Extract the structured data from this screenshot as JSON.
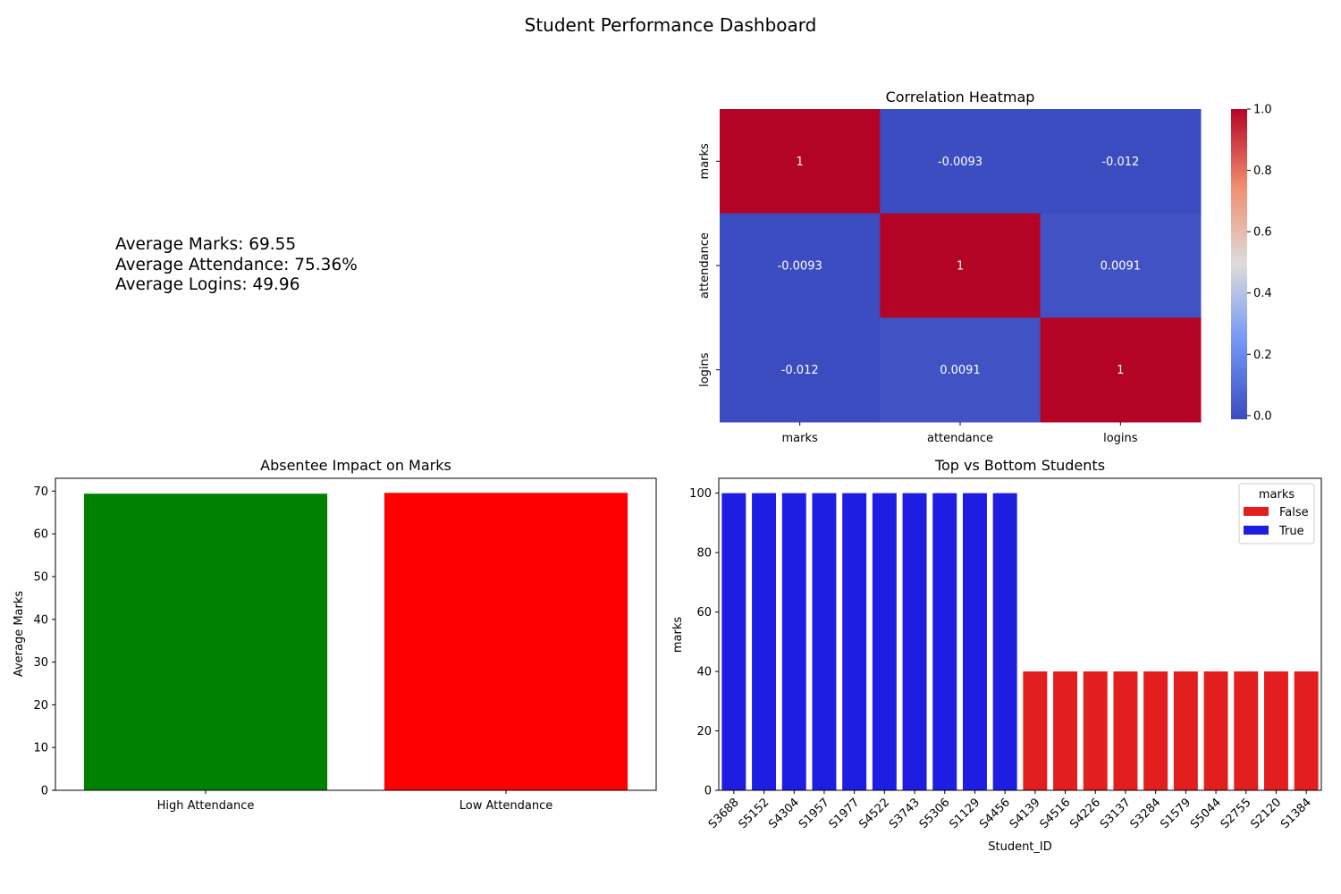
{
  "title": "Student Performance Dashboard",
  "summary": {
    "avg_marks": "Average Marks: 69.55",
    "avg_attendance": "Average Attendance: 75.36%",
    "avg_logins": "Average Logins: 49.96"
  },
  "chart_data": [
    {
      "type": "heatmap",
      "title": "Correlation Heatmap",
      "rows": [
        "marks",
        "attendance",
        "logins"
      ],
      "columns": [
        "marks",
        "attendance",
        "logins"
      ],
      "values": [
        [
          1,
          -0.0093,
          -0.012
        ],
        [
          -0.0093,
          1,
          0.0091
        ],
        [
          -0.012,
          0.0091,
          1
        ]
      ],
      "cell_labels": [
        [
          "1",
          "-0.0093",
          "-0.012"
        ],
        [
          "-0.0093",
          "1",
          "0.0091"
        ],
        [
          "-0.012",
          "0.0091",
          "1"
        ]
      ],
      "colormap": "coolwarm",
      "colorbar_range": [
        -0.012,
        1.0
      ],
      "colorbar_ticks": [
        0.0,
        0.2,
        0.4,
        0.6,
        0.8,
        1.0
      ],
      "colorbar_tick_labels": [
        "0.0",
        "0.2",
        "0.4",
        "0.6",
        "0.8",
        "1.0"
      ]
    },
    {
      "type": "bar",
      "title": "Absentee Impact on Marks",
      "categories": [
        "High Attendance",
        "Low Attendance"
      ],
      "values": [
        69.4,
        69.6
      ],
      "colors": [
        "#008000",
        "#ff0000"
      ],
      "xlabel": "",
      "ylabel": "Average Marks",
      "ylim": [
        0,
        73
      ],
      "yticks": [
        0,
        10,
        20,
        30,
        40,
        50,
        60,
        70
      ]
    },
    {
      "type": "bar",
      "title": "Top vs Bottom Students",
      "categories": [
        "S3688",
        "S5152",
        "S4304",
        "S1957",
        "S1977",
        "S4522",
        "S3743",
        "S5306",
        "S1129",
        "S4456",
        "S4139",
        "S4516",
        "S4226",
        "S3137",
        "S3284",
        "S1579",
        "S5044",
        "S2755",
        "S2120",
        "S1384"
      ],
      "values": [
        100,
        100,
        100,
        100,
        100,
        100,
        100,
        100,
        100,
        100,
        40,
        40,
        40,
        40,
        40,
        40,
        40,
        40,
        40,
        40
      ],
      "groups": [
        "True",
        "True",
        "True",
        "True",
        "True",
        "True",
        "True",
        "True",
        "True",
        "True",
        "False",
        "False",
        "False",
        "False",
        "False",
        "False",
        "False",
        "False",
        "False",
        "False"
      ],
      "xlabel": "Student_ID",
      "ylabel": "marks",
      "ylim": [
        0,
        105
      ],
      "yticks": [
        0,
        20,
        40,
        60,
        80,
        100
      ],
      "legend": {
        "title": "marks",
        "placement": "top-right",
        "entries": [
          {
            "label": "False",
            "color": "#e31e1e"
          },
          {
            "label": "True",
            "color": "#1e1ee3"
          }
        ]
      }
    }
  ]
}
